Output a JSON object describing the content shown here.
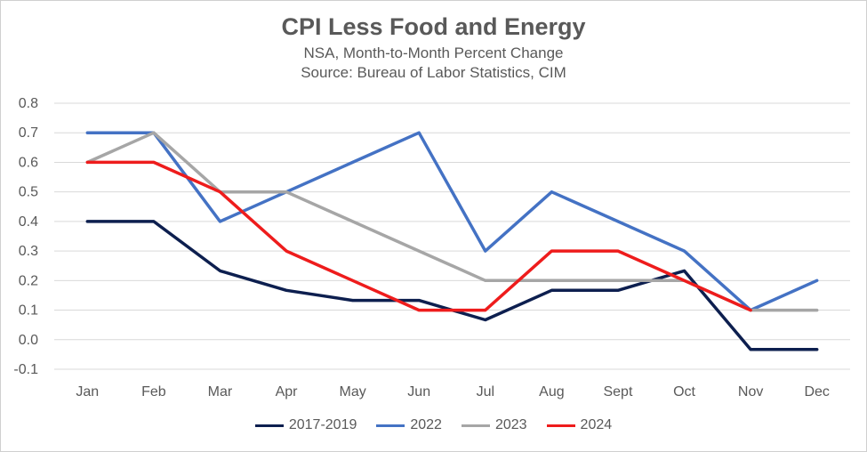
{
  "chart_data": {
    "type": "line",
    "title": "CPI Less Food and Energy",
    "subtitle_lines": [
      "NSA, Month-to-Month Percent Change",
      "Source: Bureau of Labor Statistics, CIM"
    ],
    "categories": [
      "Jan",
      "Feb",
      "Mar",
      "Apr",
      "May",
      "Jun",
      "Jul",
      "Aug",
      "Sept",
      "Oct",
      "Nov",
      "Dec"
    ],
    "ylim": [
      -0.1,
      0.8
    ],
    "yticks": [
      "0.8",
      "0.7",
      "0.6",
      "0.5",
      "0.4",
      "0.3",
      "0.2",
      "0.1",
      "0.0",
      "-0.1"
    ],
    "ytick_values": [
      0.8,
      0.7,
      0.6,
      0.5,
      0.4,
      0.3,
      0.2,
      0.1,
      0.0,
      -0.1
    ],
    "grid": true,
    "legend_position": "bottom",
    "series": [
      {
        "name": "2017-2019",
        "color": "#0d1f4f",
        "values": [
          0.4,
          0.4,
          0.233,
          0.167,
          0.133,
          0.133,
          0.067,
          0.167,
          0.167,
          0.233,
          -0.033,
          -0.033
        ]
      },
      {
        "name": "2022",
        "color": "#4472c4",
        "values": [
          0.7,
          0.7,
          0.4,
          0.5,
          0.6,
          0.7,
          0.3,
          0.5,
          0.4,
          0.3,
          0.1,
          0.2
        ]
      },
      {
        "name": "2023",
        "color": "#a6a6a6",
        "values": [
          0.6,
          0.7,
          0.5,
          0.5,
          0.4,
          0.3,
          0.2,
          0.2,
          0.2,
          0.2,
          0.1,
          0.1
        ]
      },
      {
        "name": "2024",
        "color": "#ee1c1c",
        "values": [
          0.6,
          0.6,
          0.5,
          0.3,
          0.2,
          0.1,
          0.1,
          0.3,
          0.3,
          0.2,
          0.1,
          null
        ]
      }
    ]
  }
}
